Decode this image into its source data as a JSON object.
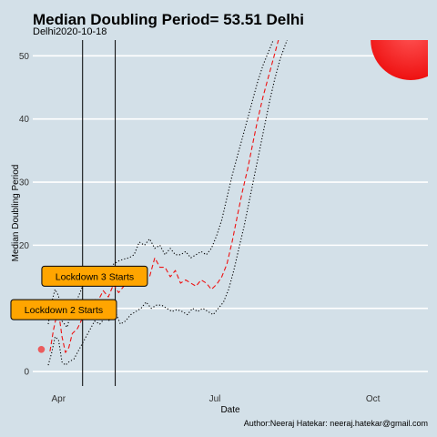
{
  "chart_data": {
    "type": "line",
    "title": "Median Doubling Period=  53.51 Delhi",
    "subtitle": "Delhi2020-10-18",
    "xlabel": "Date",
    "ylabel": "Median Doubling Period",
    "caption": "Author:Neeraj Hatekar: neeraj.hatekar@gmail.com",
    "xlim": [
      "2020-03-17",
      "2020-11-02"
    ],
    "ylim": [
      -2.3,
      52.5
    ],
    "x_ticks": [
      {
        "date": "2020-04-01",
        "label": "Apr"
      },
      {
        "date": "2020-07-01",
        "label": "Jul"
      },
      {
        "date": "2020-10-01",
        "label": "Oct"
      }
    ],
    "y_ticks": [
      0,
      10,
      20,
      30,
      40,
      50
    ],
    "grid": "horizontal",
    "vlines": [
      {
        "date": "2020-04-15",
        "label": "Lockdown 2 Starts"
      },
      {
        "date": "2020-05-04",
        "label": "Lockdown 3 Starts"
      }
    ],
    "annotations": [
      {
        "text": "Lockdown 2 Starts",
        "date": "2020-04-04",
        "y": 9.8
      },
      {
        "text": "Lockdown 3 Starts",
        "date": "2020-04-22",
        "y": 15.1
      }
    ],
    "series": [
      {
        "style": "dashed",
        "color": "#ee1111",
        "x": [
          "2020-03-27",
          "2020-03-29",
          "2020-03-31",
          "2020-04-01",
          "2020-04-03",
          "2020-04-05",
          "2020-04-07",
          "2020-04-09",
          "2020-04-12",
          "2020-04-15",
          "2020-04-18",
          "2020-04-21",
          "2020-04-24",
          "2020-04-27",
          "2020-04-30",
          "2020-05-03",
          "2020-05-06",
          "2020-05-09",
          "2020-05-12",
          "2020-05-15",
          "2020-05-18",
          "2020-05-21",
          "2020-05-24",
          "2020-05-27",
          "2020-05-30",
          "2020-06-02",
          "2020-06-05",
          "2020-06-08",
          "2020-06-11",
          "2020-06-14",
          "2020-06-17",
          "2020-06-20",
          "2020-06-23",
          "2020-06-26",
          "2020-06-29",
          "2020-07-02",
          "2020-07-05",
          "2020-07-08",
          "2020-07-11",
          "2020-07-14",
          "2020-07-17",
          "2020-07-20",
          "2020-07-23",
          "2020-07-26",
          "2020-07-29",
          "2020-08-01",
          "2020-08-04",
          "2020-08-07",
          "2020-08-09"
        ],
        "y": [
          3.2,
          6.5,
          9.0,
          9.5,
          5.5,
          3.0,
          3.8,
          6.0,
          6.8,
          8.5,
          10.5,
          11.5,
          11.2,
          12.8,
          11.8,
          13.8,
          12.5,
          13.5,
          14.0,
          15.5,
          16.0,
          14.5,
          15.0,
          18.0,
          16.5,
          16.5,
          15.0,
          16.0,
          14.0,
          14.5,
          14.0,
          13.5,
          14.5,
          14.0,
          13.0,
          13.8,
          15.0,
          17.0,
          20.5,
          24.5,
          28.5,
          32.0,
          36.0,
          40.0,
          43.5,
          46.5,
          49.5,
          52.5,
          54.0
        ]
      },
      {
        "style": "dotted",
        "color": "#000000",
        "x": [
          "2020-03-26",
          "2020-03-28",
          "2020-03-30",
          "2020-04-01",
          "2020-04-03",
          "2020-04-06",
          "2020-04-09",
          "2020-04-12",
          "2020-04-15",
          "2020-04-18",
          "2020-04-21",
          "2020-04-24",
          "2020-04-27",
          "2020-04-30",
          "2020-05-03",
          "2020-05-06",
          "2020-05-09",
          "2020-05-12",
          "2020-05-15",
          "2020-05-18",
          "2020-05-21",
          "2020-05-24",
          "2020-05-27",
          "2020-05-30",
          "2020-06-02",
          "2020-06-05",
          "2020-06-08",
          "2020-06-11",
          "2020-06-14",
          "2020-06-17",
          "2020-06-20",
          "2020-06-23",
          "2020-06-26",
          "2020-06-29",
          "2020-07-02",
          "2020-07-05",
          "2020-07-08",
          "2020-07-11",
          "2020-07-14",
          "2020-07-17",
          "2020-07-20",
          "2020-07-23",
          "2020-07-26",
          "2020-07-29",
          "2020-08-01",
          "2020-08-04",
          "2020-08-07",
          "2020-08-11"
        ],
        "y": [
          7.5,
          11.0,
          13.0,
          12.0,
          8.0,
          7.0,
          10.0,
          11.5,
          13.5,
          15.0,
          15.0,
          16.0,
          16.5,
          16.0,
          17.0,
          17.5,
          17.8,
          18.0,
          18.5,
          20.5,
          20.0,
          21.0,
          19.5,
          20.0,
          18.5,
          19.5,
          18.5,
          18.5,
          19.0,
          18.0,
          18.5,
          19.0,
          18.5,
          19.5,
          21.5,
          24.0,
          27.5,
          31.0,
          34.0,
          37.0,
          40.0,
          43.0,
          46.0,
          48.5,
          50.5,
          52.5,
          53.0,
          54.0
        ]
      },
      {
        "style": "dotted",
        "color": "#000000",
        "x": [
          "2020-03-26",
          "2020-03-28",
          "2020-03-30",
          "2020-04-01",
          "2020-04-03",
          "2020-04-05",
          "2020-04-07",
          "2020-04-10",
          "2020-04-13",
          "2020-04-16",
          "2020-04-19",
          "2020-04-22",
          "2020-04-25",
          "2020-04-28",
          "2020-05-01",
          "2020-05-04",
          "2020-05-07",
          "2020-05-10",
          "2020-05-13",
          "2020-05-16",
          "2020-05-19",
          "2020-05-22",
          "2020-05-25",
          "2020-05-28",
          "2020-05-31",
          "2020-06-03",
          "2020-06-06",
          "2020-06-09",
          "2020-06-12",
          "2020-06-15",
          "2020-06-18",
          "2020-06-21",
          "2020-06-24",
          "2020-06-27",
          "2020-06-30",
          "2020-07-03",
          "2020-07-06",
          "2020-07-09",
          "2020-07-12",
          "2020-07-15",
          "2020-07-18",
          "2020-07-21",
          "2020-07-24",
          "2020-07-27",
          "2020-07-30",
          "2020-08-02",
          "2020-08-05",
          "2020-08-08",
          "2020-08-12",
          "2020-08-16"
        ],
        "y": [
          1.0,
          3.0,
          5.5,
          5.0,
          1.5,
          1.0,
          1.5,
          2.0,
          3.5,
          5.0,
          6.5,
          8.0,
          7.5,
          8.5,
          8.0,
          9.5,
          7.5,
          8.0,
          9.0,
          9.5,
          10.0,
          11.0,
          10.0,
          10.5,
          10.5,
          10.0,
          9.5,
          9.8,
          9.5,
          9.0,
          10.0,
          9.5,
          10.0,
          9.5,
          9.0,
          10.0,
          11.0,
          13.0,
          16.0,
          19.5,
          23.0,
          27.0,
          31.0,
          35.0,
          39.0,
          43.0,
          46.5,
          49.5,
          52.5,
          54.0
        ]
      }
    ],
    "points": [
      {
        "date": "2020-03-22",
        "y": 3.5,
        "color": "#ee4444"
      }
    ],
    "bubble": {
      "date": "2020-10-23",
      "y": 52.5,
      "color": "#ee1111"
    }
  }
}
